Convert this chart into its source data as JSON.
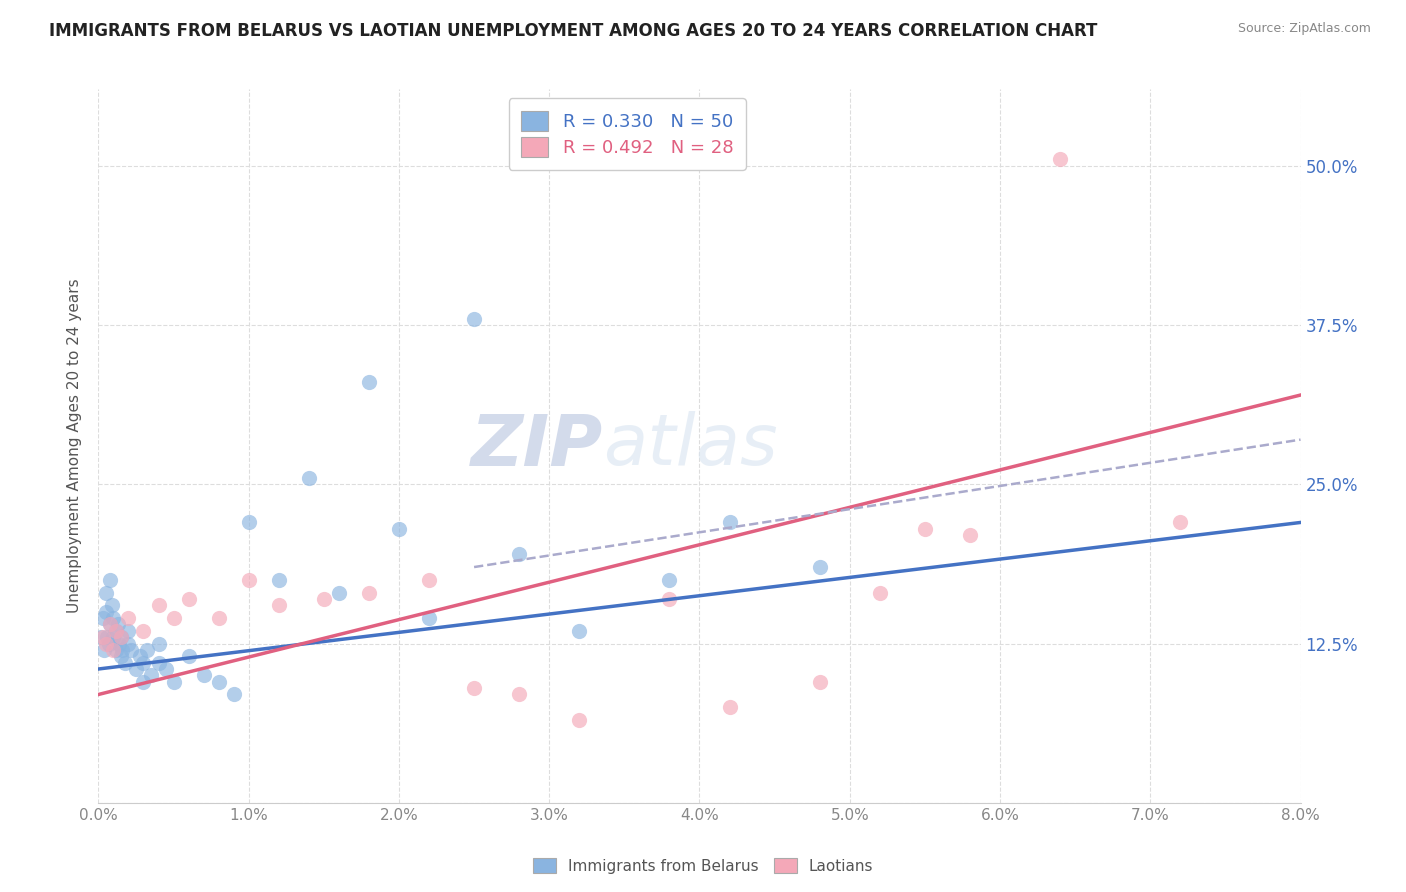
{
  "title": "IMMIGRANTS FROM BELARUS VS LAOTIAN UNEMPLOYMENT AMONG AGES 20 TO 24 YEARS CORRELATION CHART",
  "source": "Source: ZipAtlas.com",
  "ylabel": "Unemployment Among Ages 20 to 24 years",
  "right_yticks": [
    0.0,
    0.125,
    0.25,
    0.375,
    0.5
  ],
  "right_yticklabels": [
    "",
    "12.5%",
    "25.0%",
    "37.5%",
    "50.0%"
  ],
  "legend1_text": "R = 0.330   N = 50",
  "legend2_text": "R = 0.492   N = 28",
  "blue_color": "#8ab4e0",
  "pink_color": "#f4a8b8",
  "blue_line_color": "#4472c4",
  "pink_line_color": "#e06080",
  "dash_line_color": "#aaaacc",
  "watermark_zip": "ZIP",
  "watermark_atlas": "atlas",
  "background_color": "#ffffff",
  "grid_color": "#dddddd",
  "blue_scatter_x": [
    0.0002,
    0.0003,
    0.0004,
    0.0005,
    0.0005,
    0.0006,
    0.0007,
    0.0008,
    0.0008,
    0.0009,
    0.001,
    0.001,
    0.0012,
    0.0012,
    0.0013,
    0.0014,
    0.0015,
    0.0015,
    0.0016,
    0.0018,
    0.002,
    0.002,
    0.0022,
    0.0025,
    0.0028,
    0.003,
    0.003,
    0.0032,
    0.0035,
    0.004,
    0.004,
    0.0045,
    0.005,
    0.006,
    0.007,
    0.008,
    0.009,
    0.01,
    0.012,
    0.014,
    0.016,
    0.018,
    0.02,
    0.022,
    0.025,
    0.028,
    0.032,
    0.038,
    0.042,
    0.048
  ],
  "blue_scatter_y": [
    0.13,
    0.145,
    0.12,
    0.15,
    0.165,
    0.13,
    0.125,
    0.175,
    0.14,
    0.155,
    0.13,
    0.145,
    0.12,
    0.135,
    0.14,
    0.125,
    0.115,
    0.13,
    0.12,
    0.11,
    0.125,
    0.135,
    0.12,
    0.105,
    0.115,
    0.11,
    0.095,
    0.12,
    0.1,
    0.11,
    0.125,
    0.105,
    0.095,
    0.115,
    0.1,
    0.095,
    0.085,
    0.22,
    0.175,
    0.255,
    0.165,
    0.33,
    0.215,
    0.145,
    0.38,
    0.195,
    0.135,
    0.175,
    0.22,
    0.185
  ],
  "pink_scatter_x": [
    0.0003,
    0.0005,
    0.0008,
    0.001,
    0.0012,
    0.0015,
    0.002,
    0.003,
    0.004,
    0.005,
    0.006,
    0.008,
    0.01,
    0.012,
    0.015,
    0.018,
    0.022,
    0.025,
    0.028,
    0.032,
    0.038,
    0.042,
    0.048,
    0.052,
    0.055,
    0.058,
    0.064,
    0.072
  ],
  "pink_scatter_y": [
    0.13,
    0.125,
    0.14,
    0.12,
    0.135,
    0.13,
    0.145,
    0.135,
    0.155,
    0.145,
    0.16,
    0.145,
    0.175,
    0.155,
    0.16,
    0.165,
    0.175,
    0.09,
    0.085,
    0.065,
    0.16,
    0.075,
    0.095,
    0.165,
    0.215,
    0.21,
    0.505,
    0.22
  ],
  "blue_line_x": [
    0.0,
    0.08
  ],
  "blue_line_y": [
    0.105,
    0.22
  ],
  "pink_line_x": [
    0.0,
    0.08
  ],
  "pink_line_y": [
    0.085,
    0.32
  ],
  "dash_line_x": [
    0.025,
    0.08
  ],
  "dash_line_y": [
    0.185,
    0.285
  ],
  "xmin": 0.0,
  "xmax": 0.08,
  "ymin": 0.04,
  "ymax": 0.56
}
